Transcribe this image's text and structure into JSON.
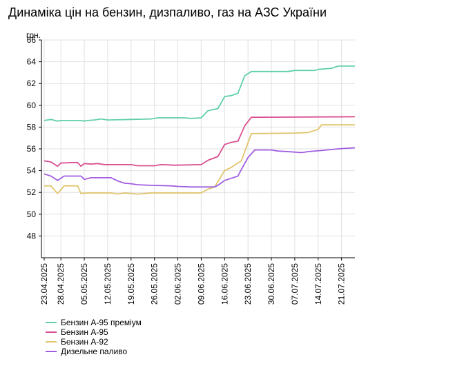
{
  "chart_data": {
    "type": "line",
    "title": "Динаміка цін на бензин, дизпаливо, газ на АЗС України",
    "ylabel": "грн.",
    "xlabel": "",
    "ylim": [
      46,
      66
    ],
    "yticks": [
      48,
      50,
      52,
      54,
      56,
      58,
      60,
      62,
      64,
      66
    ],
    "grid": true,
    "legend_position": "bottom-left",
    "xtick_labels": [
      "23.04.2025",
      "28.04.2025",
      "05.05.2025",
      "12.05.2025",
      "19.05.2025",
      "26.05.2025",
      "02.06.2025",
      "09.06.2025",
      "16.06.2025",
      "23.06.2025",
      "30.06.2025",
      "07.07.2025",
      "14.07.2025",
      "21.07.2025"
    ],
    "x_start": "2025-04-23",
    "x_end": "2025-07-25",
    "series": [
      {
        "name": "Бензин А-95 преміум",
        "color": "#5fcfa8",
        "points": [
          [
            "2025-04-23",
            58.6
          ],
          [
            "2025-04-25",
            58.7
          ],
          [
            "2025-04-27",
            58.55
          ],
          [
            "2025-04-28",
            58.6
          ],
          [
            "2025-05-04",
            58.6
          ],
          [
            "2025-05-05",
            58.55
          ],
          [
            "2025-05-06",
            58.6
          ],
          [
            "2025-05-08",
            58.65
          ],
          [
            "2025-05-10",
            58.75
          ],
          [
            "2025-05-12",
            58.65
          ],
          [
            "2025-05-19",
            58.7
          ],
          [
            "2025-05-25",
            58.75
          ],
          [
            "2025-05-27",
            58.85
          ],
          [
            "2025-06-04",
            58.85
          ],
          [
            "2025-06-06",
            58.8
          ],
          [
            "2025-06-09",
            58.85
          ],
          [
            "2025-06-11",
            59.5
          ],
          [
            "2025-06-14",
            59.7
          ],
          [
            "2025-06-16",
            60.8
          ],
          [
            "2025-06-18",
            60.9
          ],
          [
            "2025-06-20",
            61.1
          ],
          [
            "2025-06-22",
            62.7
          ],
          [
            "2025-06-24",
            63.1
          ],
          [
            "2025-07-05",
            63.1
          ],
          [
            "2025-07-07",
            63.2
          ],
          [
            "2025-07-13",
            63.2
          ],
          [
            "2025-07-14",
            63.3
          ],
          [
            "2025-07-18",
            63.4
          ],
          [
            "2025-07-20",
            63.6
          ],
          [
            "2025-07-25",
            63.6
          ]
        ]
      },
      {
        "name": "Бензин А-95",
        "color": "#d94e8f",
        "points": [
          [
            "2025-04-23",
            54.9
          ],
          [
            "2025-04-25",
            54.8
          ],
          [
            "2025-04-27",
            54.4
          ],
          [
            "2025-04-28",
            54.7
          ],
          [
            "2025-05-03",
            54.75
          ],
          [
            "2025-05-04",
            54.4
          ],
          [
            "2025-05-05",
            54.65
          ],
          [
            "2025-05-07",
            54.6
          ],
          [
            "2025-05-09",
            54.65
          ],
          [
            "2025-05-11",
            54.55
          ],
          [
            "2025-05-19",
            54.55
          ],
          [
            "2025-05-21",
            54.45
          ],
          [
            "2025-05-26",
            54.45
          ],
          [
            "2025-05-28",
            54.55
          ],
          [
            "2025-06-01",
            54.5
          ],
          [
            "2025-06-09",
            54.55
          ],
          [
            "2025-06-11",
            54.95
          ],
          [
            "2025-06-14",
            55.3
          ],
          [
            "2025-06-16",
            56.4
          ],
          [
            "2025-06-18",
            56.6
          ],
          [
            "2025-06-20",
            56.7
          ],
          [
            "2025-06-22",
            58.1
          ],
          [
            "2025-06-24",
            58.9
          ],
          [
            "2025-07-25",
            58.95
          ]
        ]
      },
      {
        "name": "Бензин А-92",
        "color": "#e0c46a",
        "points": [
          [
            "2025-04-23",
            52.6
          ],
          [
            "2025-04-25",
            52.6
          ],
          [
            "2025-04-27",
            51.9
          ],
          [
            "2025-04-29",
            52.6
          ],
          [
            "2025-05-03",
            52.6
          ],
          [
            "2025-05-04",
            51.9
          ],
          [
            "2025-05-06",
            51.95
          ],
          [
            "2025-05-13",
            51.95
          ],
          [
            "2025-05-15",
            51.85
          ],
          [
            "2025-05-17",
            51.95
          ],
          [
            "2025-05-19",
            51.9
          ],
          [
            "2025-05-21",
            51.85
          ],
          [
            "2025-05-23",
            51.9
          ],
          [
            "2025-05-25",
            51.95
          ],
          [
            "2025-06-09",
            51.95
          ],
          [
            "2025-06-11",
            52.3
          ],
          [
            "2025-06-13",
            52.5
          ],
          [
            "2025-06-16",
            54.0
          ],
          [
            "2025-06-18",
            54.3
          ],
          [
            "2025-06-20",
            54.7
          ],
          [
            "2025-06-21",
            54.9
          ],
          [
            "2025-06-24",
            57.4
          ],
          [
            "2025-07-07",
            57.45
          ],
          [
            "2025-07-11",
            57.5
          ],
          [
            "2025-07-14",
            57.8
          ],
          [
            "2025-07-15",
            58.2
          ],
          [
            "2025-07-25",
            58.2
          ]
        ]
      },
      {
        "name": "Дизельне паливо",
        "color": "#a05de0",
        "points": [
          [
            "2025-04-23",
            53.7
          ],
          [
            "2025-04-25",
            53.5
          ],
          [
            "2025-04-27",
            53.1
          ],
          [
            "2025-04-29",
            53.5
          ],
          [
            "2025-05-04",
            53.5
          ],
          [
            "2025-05-05",
            53.2
          ],
          [
            "2025-05-07",
            53.35
          ],
          [
            "2025-05-13",
            53.35
          ],
          [
            "2025-05-15",
            53.05
          ],
          [
            "2025-05-17",
            52.85
          ],
          [
            "2025-05-19",
            52.8
          ],
          [
            "2025-05-21",
            52.7
          ],
          [
            "2025-05-25",
            52.65
          ],
          [
            "2025-05-31",
            52.6
          ],
          [
            "2025-06-02",
            52.55
          ],
          [
            "2025-06-06",
            52.5
          ],
          [
            "2025-06-13",
            52.5
          ],
          [
            "2025-06-14",
            52.65
          ],
          [
            "2025-06-16",
            53.1
          ],
          [
            "2025-06-18",
            53.3
          ],
          [
            "2025-06-20",
            53.5
          ],
          [
            "2025-06-21",
            54.1
          ],
          [
            "2025-06-23",
            55.2
          ],
          [
            "2025-06-25",
            55.9
          ],
          [
            "2025-06-30",
            55.9
          ],
          [
            "2025-07-02",
            55.8
          ],
          [
            "2025-07-07",
            55.7
          ],
          [
            "2025-07-09",
            55.65
          ],
          [
            "2025-07-11",
            55.75
          ],
          [
            "2025-07-15",
            55.85
          ],
          [
            "2025-07-20",
            56.0
          ],
          [
            "2025-07-25",
            56.1
          ]
        ]
      }
    ]
  }
}
